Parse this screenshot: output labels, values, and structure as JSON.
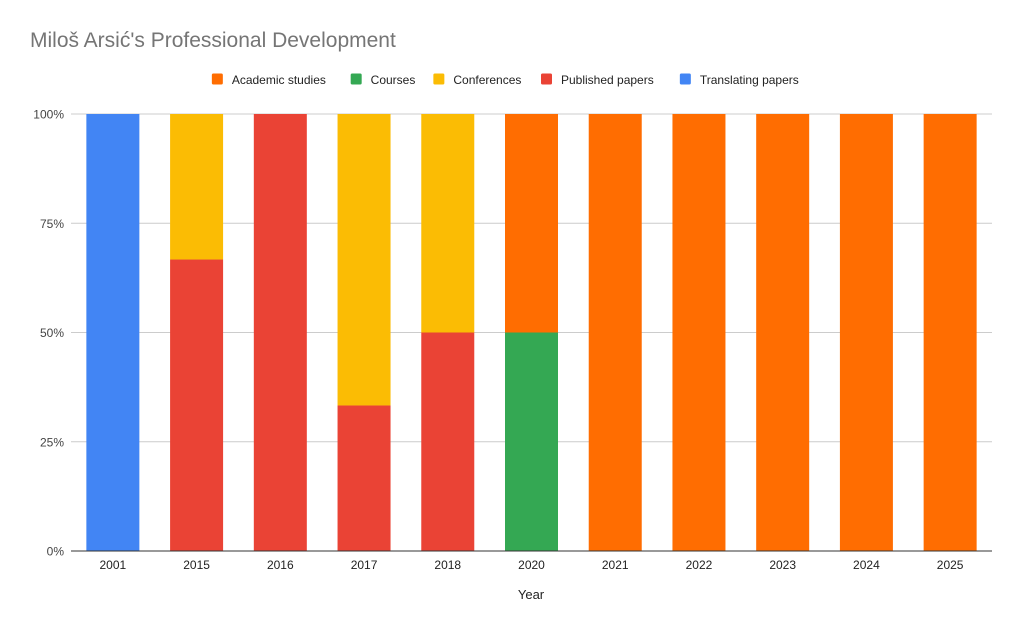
{
  "chart_data": {
    "type": "bar",
    "stacked": "percent",
    "title": "Miloš Arsić's Professional Development",
    "xlabel": "Year",
    "ylabel": "",
    "categories": [
      "2001",
      "2015",
      "2016",
      "2017",
      "2018",
      "2020",
      "2021",
      "2022",
      "2023",
      "2024",
      "2025"
    ],
    "ylim": [
      0,
      100
    ],
    "yticks": [
      "0%",
      "25%",
      "50%",
      "75%",
      "100%"
    ],
    "grid": true,
    "legend_position": "top",
    "series": [
      {
        "name": "Translating papers",
        "color": "#4285f4",
        "values": [
          100,
          0,
          0,
          0,
          0,
          0,
          0,
          0,
          0,
          0,
          0
        ]
      },
      {
        "name": "Published papers",
        "color": "#ea4335",
        "values": [
          0,
          66.7,
          100,
          33.3,
          50,
          0,
          0,
          0,
          0,
          0,
          0
        ]
      },
      {
        "name": "Conferences",
        "color": "#fbbc04",
        "values": [
          0,
          33.3,
          0,
          66.7,
          50,
          0,
          0,
          0,
          0,
          0,
          0
        ]
      },
      {
        "name": "Courses",
        "color": "#34a853",
        "values": [
          0,
          0,
          0,
          0,
          0,
          50,
          0,
          0,
          0,
          0,
          0
        ]
      },
      {
        "name": "Academic studies",
        "color": "#ff6d01",
        "values": [
          0,
          0,
          0,
          0,
          0,
          50,
          100,
          100,
          100,
          100,
          100
        ]
      }
    ],
    "legend_order": [
      "Academic studies",
      "Courses",
      "Conferences",
      "Published papers",
      "Translating papers"
    ]
  }
}
